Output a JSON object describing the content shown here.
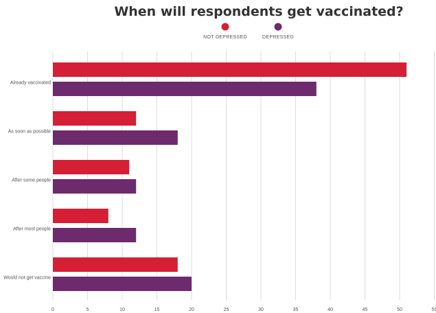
{
  "chart_data": {
    "type": "bar",
    "orientation": "horizontal",
    "title": "When will respondents get vaccinated?",
    "xlabel": "",
    "ylabel": "",
    "categories": [
      "Already vaccinated",
      "As soon as possible",
      "After some people",
      "After most people",
      "Would not get vaccine"
    ],
    "series": [
      {
        "name": "NOT DEPRESSED",
        "color": "#d41f35",
        "values": [
          51,
          12,
          11,
          8,
          18
        ]
      },
      {
        "name": "DEPRESSED",
        "color": "#6d2a6d",
        "values": [
          38,
          18,
          12,
          12,
          20
        ]
      }
    ],
    "xlim": [
      0,
      55
    ],
    "xticks": [
      "0",
      "5",
      "10",
      "15",
      "20",
      "25",
      "30",
      "35",
      "40",
      "45",
      "50",
      "55"
    ],
    "grid": true,
    "legend_position": "top-center"
  }
}
